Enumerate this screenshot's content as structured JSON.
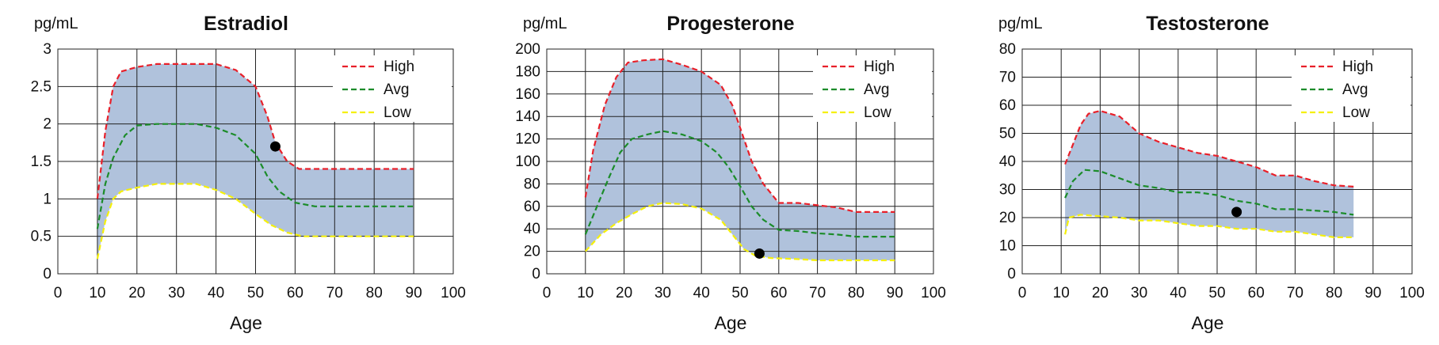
{
  "colors": {
    "band": "#b0c2dc",
    "high": "#e8202a",
    "avg": "#1c8c2a",
    "low": "#f5f00a",
    "grid": "#222222",
    "marker": "#000000"
  },
  "chart_data": [
    {
      "type": "area",
      "title": "Estradiol",
      "ylabel": "pg/mL",
      "xlabel": "Age",
      "xlim": [
        0,
        100
      ],
      "ylim": [
        0,
        3
      ],
      "xticks": [
        0,
        10,
        20,
        30,
        40,
        50,
        60,
        70,
        80,
        90,
        100
      ],
      "yticks": [
        0,
        0.5,
        1,
        1.5,
        2,
        2.5,
        3
      ],
      "ytick_labels": [
        "0",
        "0.5",
        "1",
        "1.5",
        "2",
        "2.5",
        "3"
      ],
      "grid": true,
      "legend_position": "top-right",
      "series": [
        {
          "name": "High",
          "key": "high",
          "points": [
            [
              10,
              1.0
            ],
            [
              12,
              1.9
            ],
            [
              14,
              2.5
            ],
            [
              16,
              2.7
            ],
            [
              20,
              2.76
            ],
            [
              25,
              2.8
            ],
            [
              30,
              2.8
            ],
            [
              35,
              2.8
            ],
            [
              40,
              2.8
            ],
            [
              45,
              2.72
            ],
            [
              50,
              2.5
            ],
            [
              53,
              2.1
            ],
            [
              55,
              1.75
            ],
            [
              58,
              1.5
            ],
            [
              61,
              1.4
            ],
            [
              65,
              1.4
            ],
            [
              70,
              1.4
            ],
            [
              80,
              1.4
            ],
            [
              90,
              1.4
            ]
          ]
        },
        {
          "name": "Avg",
          "key": "avg",
          "points": [
            [
              10,
              0.6
            ],
            [
              12,
              1.2
            ],
            [
              14,
              1.55
            ],
            [
              17,
              1.85
            ],
            [
              20,
              1.98
            ],
            [
              25,
              2.0
            ],
            [
              30,
              2.0
            ],
            [
              35,
              2.0
            ],
            [
              40,
              1.95
            ],
            [
              45,
              1.85
            ],
            [
              50,
              1.6
            ],
            [
              53,
              1.3
            ],
            [
              56,
              1.1
            ],
            [
              60,
              0.95
            ],
            [
              65,
              0.9
            ],
            [
              70,
              0.9
            ],
            [
              80,
              0.9
            ],
            [
              90,
              0.9
            ]
          ]
        },
        {
          "name": "Low",
          "key": "low",
          "points": [
            [
              10,
              0.2
            ],
            [
              12,
              0.7
            ],
            [
              14,
              1.0
            ],
            [
              16,
              1.1
            ],
            [
              20,
              1.15
            ],
            [
              25,
              1.2
            ],
            [
              30,
              1.2
            ],
            [
              35,
              1.2
            ],
            [
              40,
              1.12
            ],
            [
              45,
              1.0
            ],
            [
              50,
              0.8
            ],
            [
              54,
              0.65
            ],
            [
              58,
              0.55
            ],
            [
              62,
              0.5
            ],
            [
              70,
              0.5
            ],
            [
              80,
              0.5
            ],
            [
              90,
              0.5
            ]
          ]
        }
      ],
      "marker": {
        "x": 55,
        "y": 1.7
      }
    },
    {
      "type": "area",
      "title": "Progesterone",
      "ylabel": "pg/mL",
      "xlabel": "Age",
      "xlim": [
        0,
        100
      ],
      "ylim": [
        0,
        200
      ],
      "xticks": [
        0,
        10,
        20,
        30,
        40,
        50,
        60,
        70,
        80,
        90,
        100
      ],
      "yticks": [
        0,
        20,
        40,
        60,
        80,
        100,
        120,
        140,
        160,
        180,
        200
      ],
      "ytick_labels": [
        "0",
        "20",
        "40",
        "60",
        "80",
        "100",
        "120",
        "140",
        "160",
        "180",
        "200"
      ],
      "grid": true,
      "legend_position": "top-right",
      "series": [
        {
          "name": "High",
          "key": "high",
          "points": [
            [
              10,
              68
            ],
            [
              12,
              110
            ],
            [
              15,
              150
            ],
            [
              18,
              175
            ],
            [
              21,
              188
            ],
            [
              25,
              190
            ],
            [
              30,
              191
            ],
            [
              35,
              186
            ],
            [
              40,
              180
            ],
            [
              45,
              168
            ],
            [
              48,
              150
            ],
            [
              50,
              130
            ],
            [
              53,
              100
            ],
            [
              56,
              80
            ],
            [
              60,
              63
            ],
            [
              65,
              63
            ],
            [
              70,
              61
            ],
            [
              75,
              59
            ],
            [
              80,
              55
            ],
            [
              85,
              55
            ],
            [
              90,
              55
            ]
          ]
        },
        {
          "name": "Avg",
          "key": "avg",
          "points": [
            [
              10,
              35
            ],
            [
              13,
              60
            ],
            [
              16,
              85
            ],
            [
              19,
              108
            ],
            [
              22,
              120
            ],
            [
              26,
              124
            ],
            [
              30,
              127
            ],
            [
              35,
              124
            ],
            [
              40,
              118
            ],
            [
              44,
              108
            ],
            [
              47,
              95
            ],
            [
              50,
              78
            ],
            [
              53,
              60
            ],
            [
              56,
              48
            ],
            [
              60,
              39
            ],
            [
              65,
              38
            ],
            [
              70,
              36
            ],
            [
              75,
              35
            ],
            [
              80,
              33
            ],
            [
              85,
              33
            ],
            [
              90,
              33
            ]
          ]
        },
        {
          "name": "Low",
          "key": "low",
          "points": [
            [
              10,
              20
            ],
            [
              14,
              35
            ],
            [
              18,
              45
            ],
            [
              22,
              53
            ],
            [
              26,
              60
            ],
            [
              30,
              63
            ],
            [
              35,
              62
            ],
            [
              40,
              58
            ],
            [
              45,
              48
            ],
            [
              48,
              35
            ],
            [
              51,
              22
            ],
            [
              54,
              16
            ],
            [
              58,
              14
            ],
            [
              65,
              13
            ],
            [
              70,
              12
            ],
            [
              80,
              12
            ],
            [
              90,
              12
            ]
          ]
        }
      ],
      "marker": {
        "x": 55,
        "y": 18
      }
    },
    {
      "type": "area",
      "title": "Testosterone",
      "ylabel": "pg/mL",
      "xlabel": "Age",
      "xlim": [
        0,
        100
      ],
      "ylim": [
        0,
        80
      ],
      "xticks": [
        0,
        10,
        20,
        30,
        40,
        50,
        60,
        70,
        80,
        90,
        100
      ],
      "yticks": [
        0,
        10,
        20,
        30,
        40,
        50,
        60,
        70,
        80
      ],
      "ytick_labels": [
        "0",
        "10",
        "20",
        "30",
        "40",
        "50",
        "60",
        "70",
        "80"
      ],
      "grid": true,
      "legend_position": "top-right",
      "series": [
        {
          "name": "High",
          "key": "high",
          "points": [
            [
              11,
              39
            ],
            [
              13,
              46
            ],
            [
              15,
              53
            ],
            [
              17,
              57
            ],
            [
              20,
              58
            ],
            [
              25,
              56
            ],
            [
              30,
              50
            ],
            [
              35,
              47
            ],
            [
              40,
              45
            ],
            [
              45,
              43
            ],
            [
              50,
              42
            ],
            [
              55,
              40
            ],
            [
              60,
              38
            ],
            [
              65,
              35
            ],
            [
              70,
              35
            ],
            [
              75,
              33
            ],
            [
              80,
              31.5
            ],
            [
              85,
              31
            ]
          ]
        },
        {
          "name": "Avg",
          "key": "avg",
          "points": [
            [
              11,
              27
            ],
            [
              13,
              33
            ],
            [
              16,
              37
            ],
            [
              20,
              36.5
            ],
            [
              25,
              34
            ],
            [
              30,
              31.5
            ],
            [
              35,
              30.5
            ],
            [
              40,
              29
            ],
            [
              45,
              29
            ],
            [
              50,
              28
            ],
            [
              55,
              26
            ],
            [
              60,
              25
            ],
            [
              65,
              23
            ],
            [
              70,
              23
            ],
            [
              75,
              22.5
            ],
            [
              80,
              22
            ],
            [
              85,
              21
            ]
          ]
        },
        {
          "name": "Low",
          "key": "low",
          "points": [
            [
              11,
              14
            ],
            [
              12,
              20
            ],
            [
              15,
              21
            ],
            [
              20,
              20.5
            ],
            [
              25,
              20
            ],
            [
              30,
              19
            ],
            [
              35,
              19
            ],
            [
              40,
              18
            ],
            [
              45,
              17
            ],
            [
              50,
              17
            ],
            [
              55,
              16
            ],
            [
              60,
              16
            ],
            [
              65,
              15
            ],
            [
              70,
              15
            ],
            [
              75,
              14
            ],
            [
              80,
              13
            ],
            [
              85,
              13
            ]
          ]
        }
      ],
      "marker": {
        "x": 55,
        "y": 22
      }
    }
  ]
}
